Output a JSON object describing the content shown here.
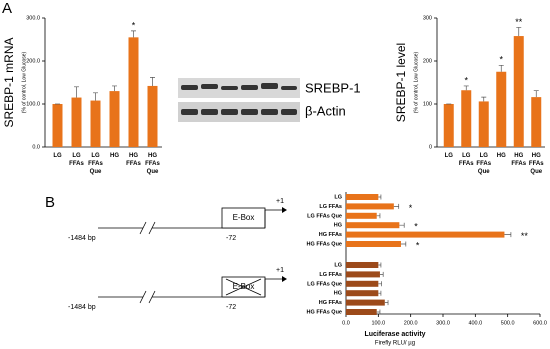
{
  "panel_labels": [
    "A",
    "B"
  ],
  "blot": {
    "labels": [
      "SREBP-1",
      "β-Actin"
    ]
  },
  "diagram": {
    "constructs": [
      {
        "start": "-1484 bp",
        "element": "E-Box",
        "position": "-72",
        "tss": "+1",
        "crossed": false
      },
      {
        "start": "-1484 bp",
        "element": "E-Box",
        "position": "-72",
        "tss": "+1",
        "crossed": true
      }
    ]
  },
  "chart_data": [
    {
      "type": "bar",
      "ylabel": "SREBP-1 mRNA",
      "ylabel_sub": "(% of control, Low Glucose)",
      "categories": [
        "LG",
        "LG FFAs",
        "LG FFAs Que",
        "HG",
        "HG FFAs",
        "HG FFAs Que"
      ],
      "values": [
        100,
        115,
        108,
        130,
        255,
        142
      ],
      "errors": [
        0,
        25,
        18,
        12,
        15,
        20
      ],
      "significance": [
        null,
        null,
        null,
        null,
        "*",
        null
      ],
      "color": "#e8731a",
      "ylim": [
        0,
        300
      ],
      "yticks": [
        {
          "value": 0,
          "label": "0.0"
        },
        {
          "value": 100,
          "label": "100.0"
        },
        {
          "value": 200,
          "label": "200.0"
        },
        {
          "value": 300,
          "label": "300.0"
        }
      ]
    },
    {
      "type": "bar",
      "ylabel": "SREBP-1 level",
      "ylabel_sub": "(% of control, Low Glucose)",
      "categories": [
        "LG",
        "LG FFAs",
        "LG FFAs Que",
        "HG",
        "HG FFAs",
        "HG FFAs Que"
      ],
      "values": [
        100,
        132,
        106,
        175,
        258,
        116
      ],
      "errors": [
        0,
        10,
        10,
        15,
        20,
        15
      ],
      "significance": [
        null,
        "*",
        null,
        "*",
        "**",
        null
      ],
      "color": "#e8731a",
      "ylim": [
        0,
        300
      ],
      "yticks": [
        0,
        100,
        200,
        300
      ]
    },
    {
      "type": "hbar",
      "xlabel": "Luciferase activity",
      "xlabel_sub": "Firefly RLU/ µg",
      "categories": [
        "LG",
        "LG FFAs",
        "LG FFAs Que",
        "HG",
        "HG FFAs",
        "HG FFAs Que"
      ],
      "series": [
        {
          "color": "#e8731a",
          "values": [
            100,
            148,
            95,
            165,
            490,
            170
          ],
          "errors": [
            8,
            15,
            10,
            15,
            20,
            15
          ],
          "significance": [
            null,
            "*",
            null,
            "*",
            "**",
            "*"
          ]
        },
        {
          "color": "#9c4a1a",
          "values": [
            100,
            105,
            100,
            100,
            120,
            95
          ],
          "errors": [
            8,
            10,
            10,
            8,
            10,
            10
          ],
          "significance": [
            null,
            null,
            null,
            null,
            null,
            null
          ]
        }
      ],
      "xlim": [
        0,
        600
      ],
      "xticks": [
        {
          "value": 0,
          "label": "0.0"
        },
        {
          "value": 100,
          "label": "100.0"
        },
        {
          "value": 200,
          "label": "200.0"
        },
        {
          "value": 300,
          "label": "300.0"
        },
        {
          "value": 400,
          "label": "400.0"
        },
        {
          "value": 500,
          "label": "500.0"
        },
        {
          "value": 600,
          "label": "600.0"
        }
      ]
    }
  ]
}
